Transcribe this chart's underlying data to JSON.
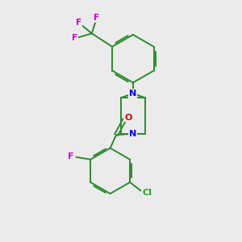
{
  "background_color": "#ebebeb",
  "bond_color": "#2d8a2d",
  "N_color": "#0000ee",
  "O_color": "#dd0000",
  "F_color": "#cc00cc",
  "Cl_color": "#22aa22",
  "line_width": 1.4,
  "figsize": [
    3.0,
    3.0
  ],
  "dpi": 100,
  "xlim": [
    0,
    10
  ],
  "ylim": [
    0,
    10
  ]
}
